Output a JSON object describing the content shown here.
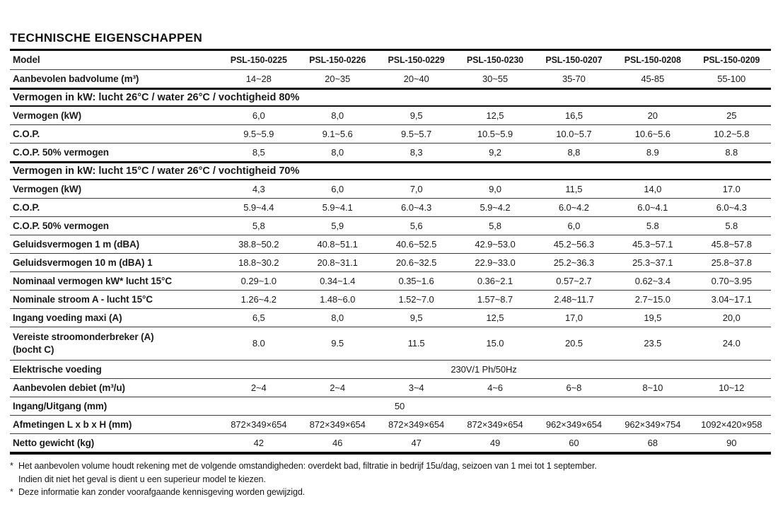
{
  "page": {
    "title": "TECHNISCHE EIGENSCHAPPEN"
  },
  "table": {
    "rows": [
      {
        "key": "model",
        "type": "model",
        "label": "Model",
        "values": [
          "PSL-150-0225",
          "PSL-150-0226",
          "PSL-150-0229",
          "PSL-150-0230",
          "PSL-150-0207",
          "PSL-150-0208",
          "PSL-150-0209"
        ]
      },
      {
        "key": "badvolume",
        "type": "data",
        "label": "Aanbevolen badvolume (m³)",
        "values": [
          "14~28",
          "20~35",
          "20~40",
          "30~55",
          "35-70",
          "45-85",
          "55-100"
        ]
      },
      {
        "key": "sectie-1",
        "type": "section",
        "label": "Vermogen in kW: lucht 26°C / water 26°C / vochtigheid 80%"
      },
      {
        "key": "vermogen-kw-1",
        "type": "data",
        "label": "Vermogen (kW)",
        "values": [
          "6,0",
          "8,0",
          "9,5",
          "12,5",
          "16,5",
          "20",
          "25"
        ]
      },
      {
        "key": "cop-1",
        "type": "data",
        "label": "C.O.P.",
        "values": [
          "9.5~5.9",
          "9.1~5.6",
          "9.5~5.7",
          "10.5~5.9",
          "10.0~5.7",
          "10.6~5.6",
          "10.2~5.8"
        ]
      },
      {
        "key": "cop-50-1",
        "type": "data",
        "label": "C.O.P. 50% vermogen",
        "values": [
          "8,5",
          "8,0",
          "8,3",
          "9,2",
          "8,8",
          "8.9",
          "8.8"
        ]
      },
      {
        "key": "sectie-2",
        "type": "section",
        "label": "Vermogen in kW: lucht 15°C / water 26°C / vochtigheid 70%"
      },
      {
        "key": "vermogen-kw-2",
        "type": "data",
        "label": "Vermogen (kW)",
        "values": [
          "4,3",
          "6,0",
          "7,0",
          "9,0",
          "11,5",
          "14,0",
          "17.0"
        ]
      },
      {
        "key": "cop-2",
        "type": "data",
        "label": "C.O.P.",
        "values": [
          "5.9~4.4",
          "5.9~4.1",
          "6.0~4.3",
          "5.9~4.2",
          "6.0~4.2",
          "6.0~4.1",
          "6.0~4.3"
        ]
      },
      {
        "key": "cop-50-2",
        "type": "data",
        "label": "C.O.P. 50% vermogen",
        "values": [
          "5,8",
          "5,9",
          "5,6",
          "5,8",
          "6,0",
          "5.8",
          "5.8"
        ]
      },
      {
        "key": "geluid-1m",
        "type": "data",
        "label": "Geluidsvermogen 1 m (dBA)",
        "values": [
          "38.8~50.2",
          "40.8~51.1",
          "40.6~52.5",
          "42.9~53.0",
          "45.2~56.3",
          "45.3~57.1",
          "45.8~57.8"
        ]
      },
      {
        "key": "geluid-10m",
        "type": "data",
        "label": "Geluidsvermogen 10 m (dBA) 1",
        "values": [
          "18.8~30.2",
          "20.8~31.1",
          "20.6~32.5",
          "22.9~33.0",
          "25.2~36.3",
          "25.3~37.1",
          "25.8~37.8"
        ]
      },
      {
        "key": "nominaal-vermogen",
        "type": "data",
        "label": "Nominaal vermogen kW* lucht 15°C",
        "values": [
          "0.29~1.0",
          "0.34~1.4",
          "0.35~1.6",
          "0.36~2.1",
          "0.57~2.7",
          "0.62~3.4",
          "0.70~3.95"
        ]
      },
      {
        "key": "nominale-stroom",
        "type": "data",
        "label": "Nominale stroom A - lucht 15°C",
        "values": [
          "1.26~4.2",
          "1.48~6.0",
          "1.52~7.0",
          "1.57~8.7",
          "2.48~11.7",
          "2.7~15.0",
          "3.04~17.1"
        ]
      },
      {
        "key": "ingang-voeding",
        "type": "data",
        "label": "Ingang voeding maxi (A)",
        "values": [
          "6,5",
          "8,0",
          "9,5",
          "12,5",
          "17,0",
          "19,5",
          "20,0"
        ]
      },
      {
        "key": "stroomonderbreker",
        "type": "data",
        "label": "Vereiste stroomonderbreker (A)",
        "label2": "(bocht C)",
        "values": [
          "8.0",
          "9.5",
          "11.5",
          "15.0",
          "20.5",
          "23.5",
          "24.0"
        ]
      },
      {
        "key": "elektrische-voeding",
        "type": "span",
        "label": "Elektrische voeding",
        "value": "230V/1 Ph/50Hz"
      },
      {
        "key": "debiet",
        "type": "data",
        "label": "Aanbevolen debiet (m³/u)",
        "values": [
          "2~4",
          "2~4",
          "3~4",
          "4~6",
          "6~8",
          "8~10",
          "10~12"
        ]
      },
      {
        "key": "ingang-uitgang",
        "type": "span",
        "label": "Ingang/Uitgang (mm)",
        "value": "50"
      },
      {
        "key": "afmetingen",
        "type": "data",
        "label": "Afmetingen L x b x H (mm)",
        "values": [
          "872×349×654",
          "872×349×654",
          "872×349×654",
          "872×349×654",
          "962×349×654",
          "962×349×754",
          "1092×420×958"
        ]
      },
      {
        "key": "netto-gewicht",
        "type": "data",
        "label": "Netto gewicht (kg)",
        "values": [
          "42",
          "46",
          "47",
          "49",
          "60",
          "68",
          "90"
        ]
      }
    ]
  },
  "footnotes": [
    {
      "marker": "*",
      "text": "Het aanbevolen volume houdt rekening met de volgende omstandigheden: overdekt bad, filtratie in bedrijf 15u/dag, seizoen van 1 mei tot 1 september."
    },
    {
      "marker": "",
      "text": "Indien dit niet het geval is dient u een superieur model te kiezen."
    },
    {
      "marker": "*",
      "text": "Deze informatie kan zonder voorafgaande kennisgeving worden gewijzigd."
    }
  ]
}
